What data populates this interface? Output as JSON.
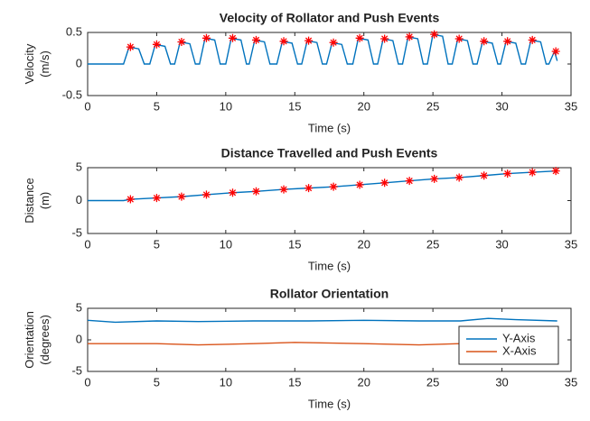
{
  "chart_data": [
    {
      "type": "line",
      "title": "Velocity of Rollator and Push Events",
      "xlabel": "Time (s)",
      "ylabel": [
        "Velocity",
        "(m/s)"
      ],
      "xlim": [
        0,
        35
      ],
      "xticks": [
        0,
        5,
        10,
        15,
        20,
        25,
        30,
        35
      ],
      "ylim": [
        -0.5,
        0.5
      ],
      "yticks": [
        -0.5,
        0,
        0.5
      ],
      "series": [
        {
          "color": "#0072bd",
          "marker": "none",
          "x": [
            0,
            2.6,
            3.0,
            3.7,
            4.1,
            4.5,
            4.9,
            5.6,
            6.0,
            6.3,
            6.7,
            7.4,
            7.8,
            8.1,
            8.5,
            9.2,
            9.6,
            10.0,
            10.4,
            11.1,
            11.5,
            11.7,
            12.1,
            12.8,
            13.2,
            13.7,
            14.1,
            14.8,
            15.2,
            15.5,
            15.9,
            16.6,
            17.0,
            17.3,
            17.7,
            18.4,
            18.8,
            19.2,
            19.6,
            20.3,
            20.7,
            21.0,
            21.4,
            22.1,
            22.5,
            22.8,
            23.2,
            23.9,
            24.3,
            24.6,
            25.0,
            25.7,
            26.1,
            26.4,
            26.8,
            27.5,
            27.9,
            28.2,
            28.6,
            29.3,
            29.7,
            29.9,
            30.3,
            31.0,
            31.4,
            31.7,
            32.1,
            32.8,
            33.2,
            33.4,
            33.8,
            34.0
          ],
          "values": [
            0,
            0,
            0.27,
            0.24,
            0,
            0,
            0.31,
            0.28,
            0,
            0,
            0.35,
            0.32,
            0,
            0,
            0.41,
            0.38,
            0,
            0,
            0.41,
            0.38,
            0,
            0,
            0.38,
            0.35,
            0,
            0,
            0.36,
            0.33,
            0,
            0,
            0.37,
            0.34,
            0,
            0,
            0.34,
            0.31,
            0,
            0,
            0.41,
            0.38,
            0,
            0,
            0.4,
            0.37,
            0,
            0,
            0.43,
            0.4,
            0,
            0,
            0.47,
            0.44,
            0,
            0,
            0.4,
            0.37,
            0,
            0,
            0.36,
            0.33,
            0,
            0,
            0.36,
            0.33,
            0,
            0,
            0.38,
            0.35,
            0,
            0,
            0.2,
            0.05
          ]
        },
        {
          "color": "#ff0000",
          "marker": "asterisk",
          "x": [
            3.1,
            5.0,
            6.8,
            8.6,
            10.5,
            12.2,
            14.2,
            16.0,
            17.8,
            19.7,
            21.5,
            23.3,
            25.1,
            26.9,
            28.7,
            30.4,
            32.2,
            33.9
          ],
          "values": [
            0.27,
            0.31,
            0.35,
            0.41,
            0.41,
            0.38,
            0.36,
            0.37,
            0.34,
            0.41,
            0.4,
            0.43,
            0.47,
            0.4,
            0.36,
            0.36,
            0.38,
            0.2
          ]
        }
      ]
    },
    {
      "type": "line",
      "title": "Distance Travelled and Push Events",
      "xlabel": "Time (s)",
      "ylabel": [
        "Distance",
        "(m)"
      ],
      "xlim": [
        0,
        35
      ],
      "xticks": [
        0,
        5,
        10,
        15,
        20,
        25,
        30,
        35
      ],
      "ylim": [
        -5,
        5
      ],
      "yticks": [
        -5,
        0,
        5
      ],
      "series": [
        {
          "color": "#0072bd",
          "marker": "none",
          "x": [
            0,
            2.6,
            3.1,
            5.0,
            6.8,
            8.6,
            10.5,
            12.2,
            14.2,
            16.0,
            17.8,
            19.7,
            21.5,
            23.3,
            25.1,
            26.9,
            28.7,
            30.4,
            32.2,
            33.9
          ],
          "values": [
            0,
            0,
            0.2,
            0.4,
            0.6,
            0.9,
            1.2,
            1.4,
            1.7,
            1.9,
            2.1,
            2.4,
            2.7,
            3.0,
            3.3,
            3.5,
            3.8,
            4.1,
            4.3,
            4.5
          ]
        },
        {
          "color": "#ff0000",
          "marker": "asterisk",
          "x": [
            3.1,
            5.0,
            6.8,
            8.6,
            10.5,
            12.2,
            14.2,
            16.0,
            17.8,
            19.7,
            21.5,
            23.3,
            25.1,
            26.9,
            28.7,
            30.4,
            32.2,
            33.9
          ],
          "values": [
            0.2,
            0.4,
            0.6,
            0.9,
            1.2,
            1.4,
            1.7,
            1.9,
            2.1,
            2.4,
            2.7,
            3.0,
            3.3,
            3.5,
            3.8,
            4.1,
            4.3,
            4.5
          ]
        }
      ]
    },
    {
      "type": "line",
      "title": "Rollator Orientation",
      "xlabel": "Time (s)",
      "ylabel": [
        "Orientation",
        "(degrees)"
      ],
      "xlim": [
        0,
        35
      ],
      "xticks": [
        0,
        5,
        10,
        15,
        20,
        25,
        30,
        35
      ],
      "ylim": [
        -5,
        5
      ],
      "yticks": [
        -5,
        0,
        5
      ],
      "legend": "lower right",
      "series": [
        {
          "name": "Y-Axis",
          "color": "#0072bd",
          "marker": "none",
          "x": [
            0,
            2,
            5,
            8,
            12,
            16,
            20,
            24,
            27,
            29,
            31,
            34
          ],
          "values": [
            3.1,
            2.8,
            3.0,
            2.9,
            3.0,
            3.0,
            3.1,
            3.0,
            3.0,
            3.4,
            3.2,
            3.0
          ]
        },
        {
          "name": "X-Axis",
          "color": "#d95319",
          "marker": "none",
          "x": [
            0,
            5,
            8,
            12,
            15,
            20,
            24,
            27,
            30,
            34
          ],
          "values": [
            -0.6,
            -0.6,
            -0.8,
            -0.6,
            -0.4,
            -0.6,
            -0.8,
            -0.6,
            -0.3,
            -0.4
          ]
        }
      ]
    }
  ]
}
